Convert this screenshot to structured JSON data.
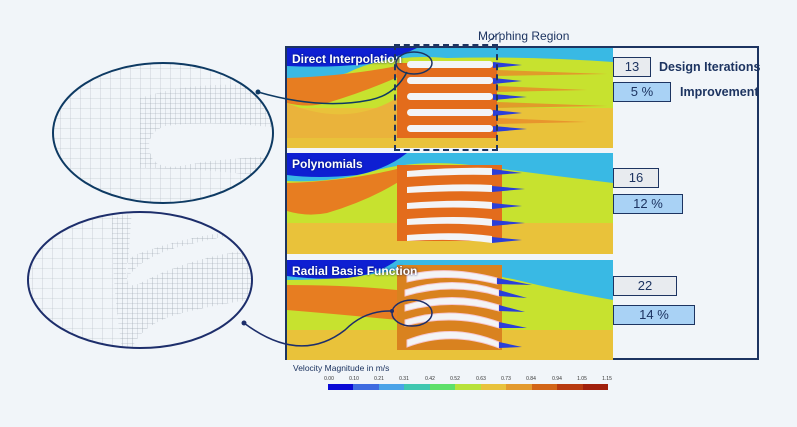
{
  "annotation": {
    "morphing_region_label": "Morphing Region"
  },
  "panels": [
    {
      "title": "Direct Interpolation",
      "design_iterations": "13",
      "improvement": "5 %"
    },
    {
      "title": "Polynomials",
      "design_iterations": "16",
      "improvement": "12 %"
    },
    {
      "title": "Radial Basis Function",
      "design_iterations": "22",
      "improvement": "14 %"
    }
  ],
  "legend_labels": {
    "design_iterations": "Design Iterations",
    "improvement": "Improvement"
  },
  "colorbar": {
    "title": "Velocity Magnitude in m/s",
    "ticks": [
      "0.00",
      "0.10",
      "0.21",
      "0.31",
      "0.42",
      "0.52",
      "0.63",
      "0.73",
      "0.84",
      "0.94",
      "1.05",
      "1.15"
    ],
    "colors": [
      "#0a0ad6",
      "#3e6be0",
      "#4aa3e8",
      "#3fc7b0",
      "#5ee06a",
      "#b8e23a",
      "#e8c23c",
      "#e39a2e",
      "#d26518",
      "#b83a10",
      "#a01f0c",
      "#9a1010"
    ]
  },
  "mesh_callouts": [
    {
      "name": "direct-interpolation-mesh-detail"
    },
    {
      "name": "radial-basis-function-mesh-detail"
    }
  ]
}
